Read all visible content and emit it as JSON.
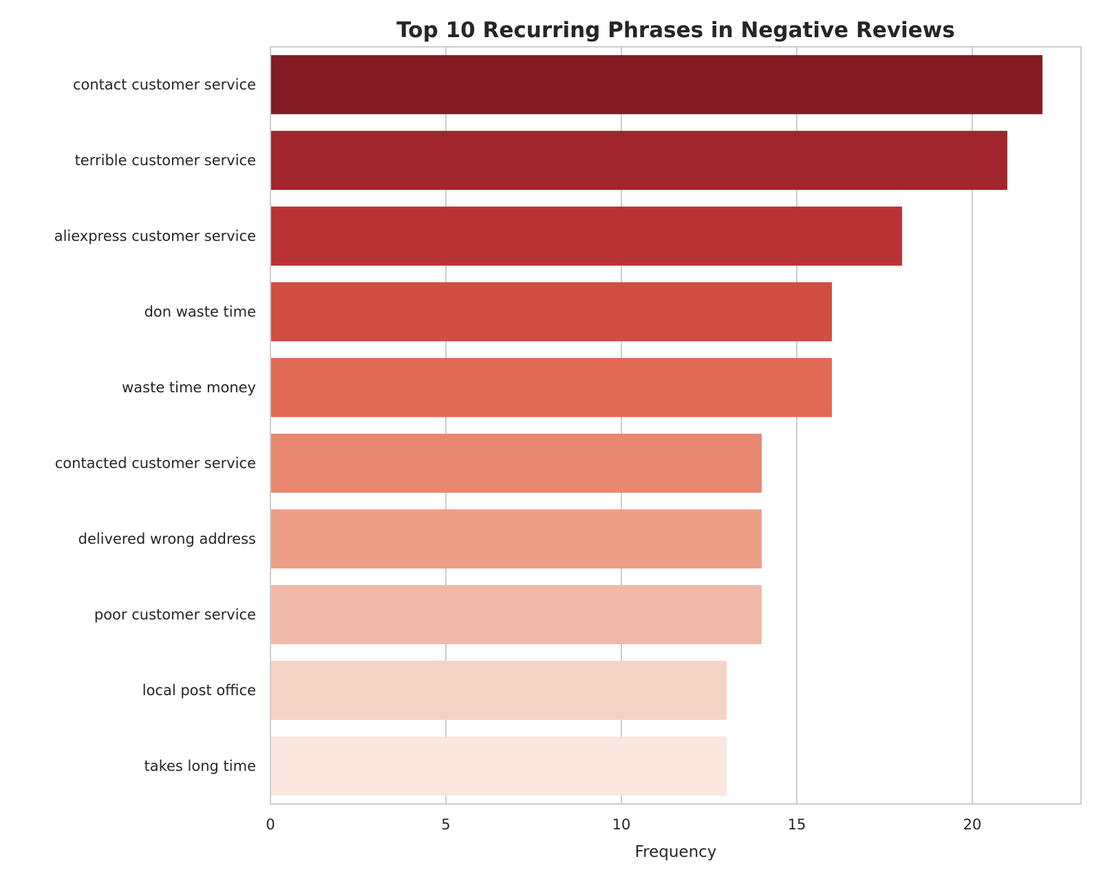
{
  "chart_data": {
    "type": "bar",
    "orientation": "horizontal",
    "title": "Top 10 Recurring Phrases in Negative Reviews",
    "xlabel": "Frequency",
    "ylabel": "",
    "categories": [
      "contact customer service",
      "terrible customer service",
      "aliexpress customer service",
      "don waste time",
      "waste time money",
      "contacted customer service",
      "delivered wrong address",
      "poor customer service",
      "local post office",
      "takes long time"
    ],
    "values": [
      22,
      21,
      18,
      16,
      16,
      14,
      14,
      14,
      13,
      13
    ],
    "colors": [
      "#841b24",
      "#a0262c",
      "#ba3334",
      "#d24d41",
      "#e16a55",
      "#e98870",
      "#eb9f87",
      "#f0b9a7",
      "#f4d2c4",
      "#fae5df"
    ],
    "xlim": [
      0,
      23.1
    ],
    "xticks": [
      "0",
      "5",
      "10",
      "15",
      "20"
    ],
    "grid": "vertical",
    "legend": "none"
  }
}
